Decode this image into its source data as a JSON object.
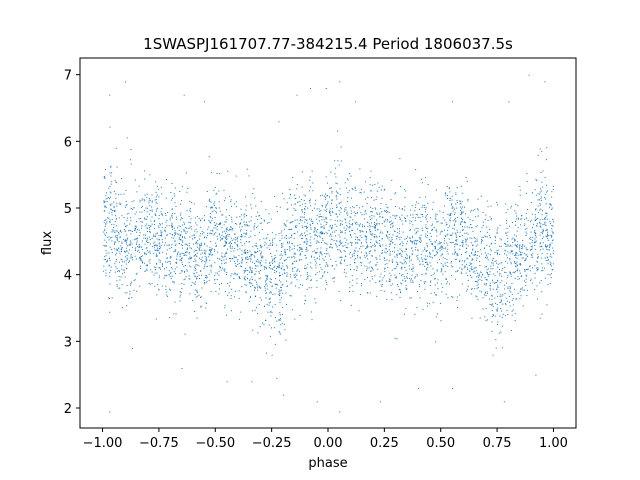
{
  "chart_data": {
    "type": "scatter",
    "title": "1SWASPJ161707.77-384215.4 Period 1806037.5s",
    "xlabel": "phase",
    "ylabel": "flux",
    "xlim": [
      -1.1,
      1.1
    ],
    "ylim": [
      1.7,
      7.25
    ],
    "xticks": [
      -1.0,
      -0.75,
      -0.5,
      -0.25,
      0.0,
      0.25,
      0.5,
      0.75,
      1.0
    ],
    "xtick_labels": [
      "−1.00",
      "−0.75",
      "−0.50",
      "−0.25",
      "0.00",
      "0.25",
      "0.50",
      "0.75",
      "1.00"
    ],
    "yticks": [
      2,
      3,
      4,
      5,
      6,
      7
    ],
    "ytick_labels": [
      "2",
      "3",
      "4",
      "5",
      "6",
      "7"
    ],
    "grid": false,
    "marker_color": "#1f77b4",
    "series": [
      {
        "x_range": [
          -1.0,
          1.0
        ],
        "baseline_flux": 4.5,
        "profile": [
          [
            -1.0,
            4.6,
            0.4
          ],
          [
            -0.96,
            4.8,
            0.55
          ],
          [
            -0.92,
            4.4,
            0.35
          ],
          [
            -0.85,
            4.6,
            0.4
          ],
          [
            -0.78,
            4.6,
            0.4
          ],
          [
            -0.72,
            4.4,
            0.4
          ],
          [
            -0.65,
            4.5,
            0.45
          ],
          [
            -0.58,
            4.2,
            0.4
          ],
          [
            -0.5,
            4.6,
            0.4
          ],
          [
            -0.42,
            4.4,
            0.4
          ],
          [
            -0.35,
            4.4,
            0.4
          ],
          [
            -0.28,
            4.0,
            0.45
          ],
          [
            -0.22,
            3.9,
            0.5
          ],
          [
            -0.18,
            4.4,
            0.45
          ],
          [
            -0.1,
            4.6,
            0.4
          ],
          [
            -0.03,
            4.5,
            0.4
          ],
          [
            0.04,
            4.8,
            0.55
          ],
          [
            0.1,
            4.5,
            0.4
          ],
          [
            0.18,
            4.5,
            0.4
          ],
          [
            0.25,
            4.6,
            0.4
          ],
          [
            0.32,
            4.3,
            0.4
          ],
          [
            0.4,
            4.5,
            0.4
          ],
          [
            0.48,
            4.3,
            0.45
          ],
          [
            0.55,
            4.6,
            0.4
          ],
          [
            0.62,
            4.4,
            0.4
          ],
          [
            0.7,
            4.1,
            0.45
          ],
          [
            0.75,
            4.0,
            0.5
          ],
          [
            0.8,
            4.2,
            0.45
          ],
          [
            0.88,
            4.4,
            0.4
          ],
          [
            0.95,
            4.8,
            0.5
          ],
          [
            1.0,
            4.5,
            0.4
          ]
        ],
        "outliers": [
          [
            -0.97,
            6.7
          ],
          [
            -0.9,
            6.9
          ],
          [
            -0.64,
            6.7
          ],
          [
            -0.55,
            6.6
          ],
          [
            -0.22,
            6.3
          ],
          [
            -0.14,
            6.7
          ],
          [
            -0.08,
            6.8
          ],
          [
            -0.01,
            6.8
          ],
          [
            0.05,
            6.9
          ],
          [
            0.12,
            6.6
          ],
          [
            0.55,
            6.6
          ],
          [
            0.8,
            6.6
          ],
          [
            0.96,
            6.9
          ],
          [
            0.89,
            7.0
          ],
          [
            -0.87,
            2.9
          ],
          [
            -0.65,
            2.6
          ],
          [
            -0.45,
            2.4
          ],
          [
            -0.34,
            2.4
          ],
          [
            -0.25,
            2.8
          ],
          [
            -0.2,
            2.2
          ],
          [
            -0.05,
            2.1
          ],
          [
            0.05,
            1.95
          ],
          [
            0.23,
            2.1
          ],
          [
            0.4,
            2.3
          ],
          [
            0.55,
            2.3
          ],
          [
            0.73,
            2.8
          ],
          [
            0.78,
            2.1
          ],
          [
            0.92,
            2.5
          ],
          [
            -0.97,
            1.95
          ]
        ],
        "n_points": 4200
      }
    ]
  }
}
